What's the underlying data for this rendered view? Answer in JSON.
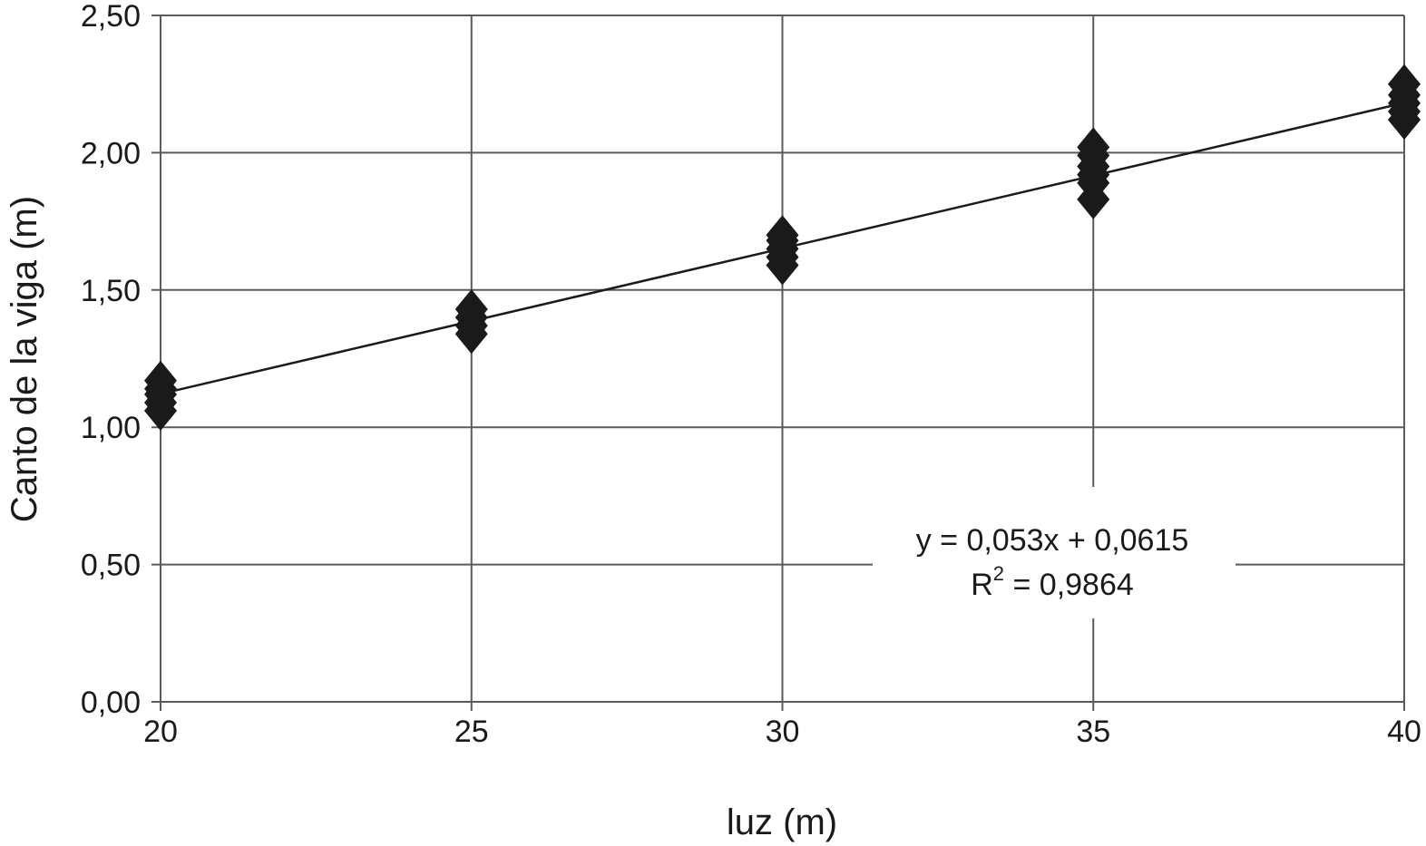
{
  "chart_data": {
    "type": "scatter",
    "xlabel": "luz (m)",
    "ylabel": "Canto de la viga (m)",
    "xlim": [
      20,
      40
    ],
    "ylim": [
      0,
      2.5
    ],
    "x_ticks": [
      20,
      25,
      30,
      35,
      40
    ],
    "y_ticks": [
      0,
      0.5,
      1.0,
      1.5,
      2.0,
      2.5
    ],
    "x_tick_labels": [
      "20",
      "25",
      "30",
      "35",
      "40"
    ],
    "y_tick_labels": [
      "0,00",
      "0,50",
      "1,00",
      "1,50",
      "2,00",
      "2,50"
    ],
    "grid": true,
    "marker": "diamond",
    "color": "#1a1a1a",
    "points": [
      {
        "x": 20,
        "y": 1.06
      },
      {
        "x": 20,
        "y": 1.09
      },
      {
        "x": 20,
        "y": 1.12
      },
      {
        "x": 20,
        "y": 1.14
      },
      {
        "x": 20,
        "y": 1.17
      },
      {
        "x": 25,
        "y": 1.34
      },
      {
        "x": 25,
        "y": 1.37
      },
      {
        "x": 25,
        "y": 1.4
      },
      {
        "x": 25,
        "y": 1.43
      },
      {
        "x": 30,
        "y": 1.59
      },
      {
        "x": 30,
        "y": 1.62
      },
      {
        "x": 30,
        "y": 1.65
      },
      {
        "x": 30,
        "y": 1.68
      },
      {
        "x": 30,
        "y": 1.7
      },
      {
        "x": 35,
        "y": 1.83
      },
      {
        "x": 35,
        "y": 1.89
      },
      {
        "x": 35,
        "y": 1.92
      },
      {
        "x": 35,
        "y": 1.95
      },
      {
        "x": 35,
        "y": 1.99
      },
      {
        "x": 35,
        "y": 2.02
      },
      {
        "x": 40,
        "y": 2.12
      },
      {
        "x": 40,
        "y": 2.15
      },
      {
        "x": 40,
        "y": 2.18
      },
      {
        "x": 40,
        "y": 2.21
      },
      {
        "x": 40,
        "y": 2.25
      }
    ],
    "trendline": {
      "slope": 0.053,
      "intercept": 0.0615,
      "equation": "y = 0,053x + 0,0615",
      "r2_prefix": "R",
      "r2_sup": "2",
      "r2_value": " = 0,9864"
    }
  }
}
